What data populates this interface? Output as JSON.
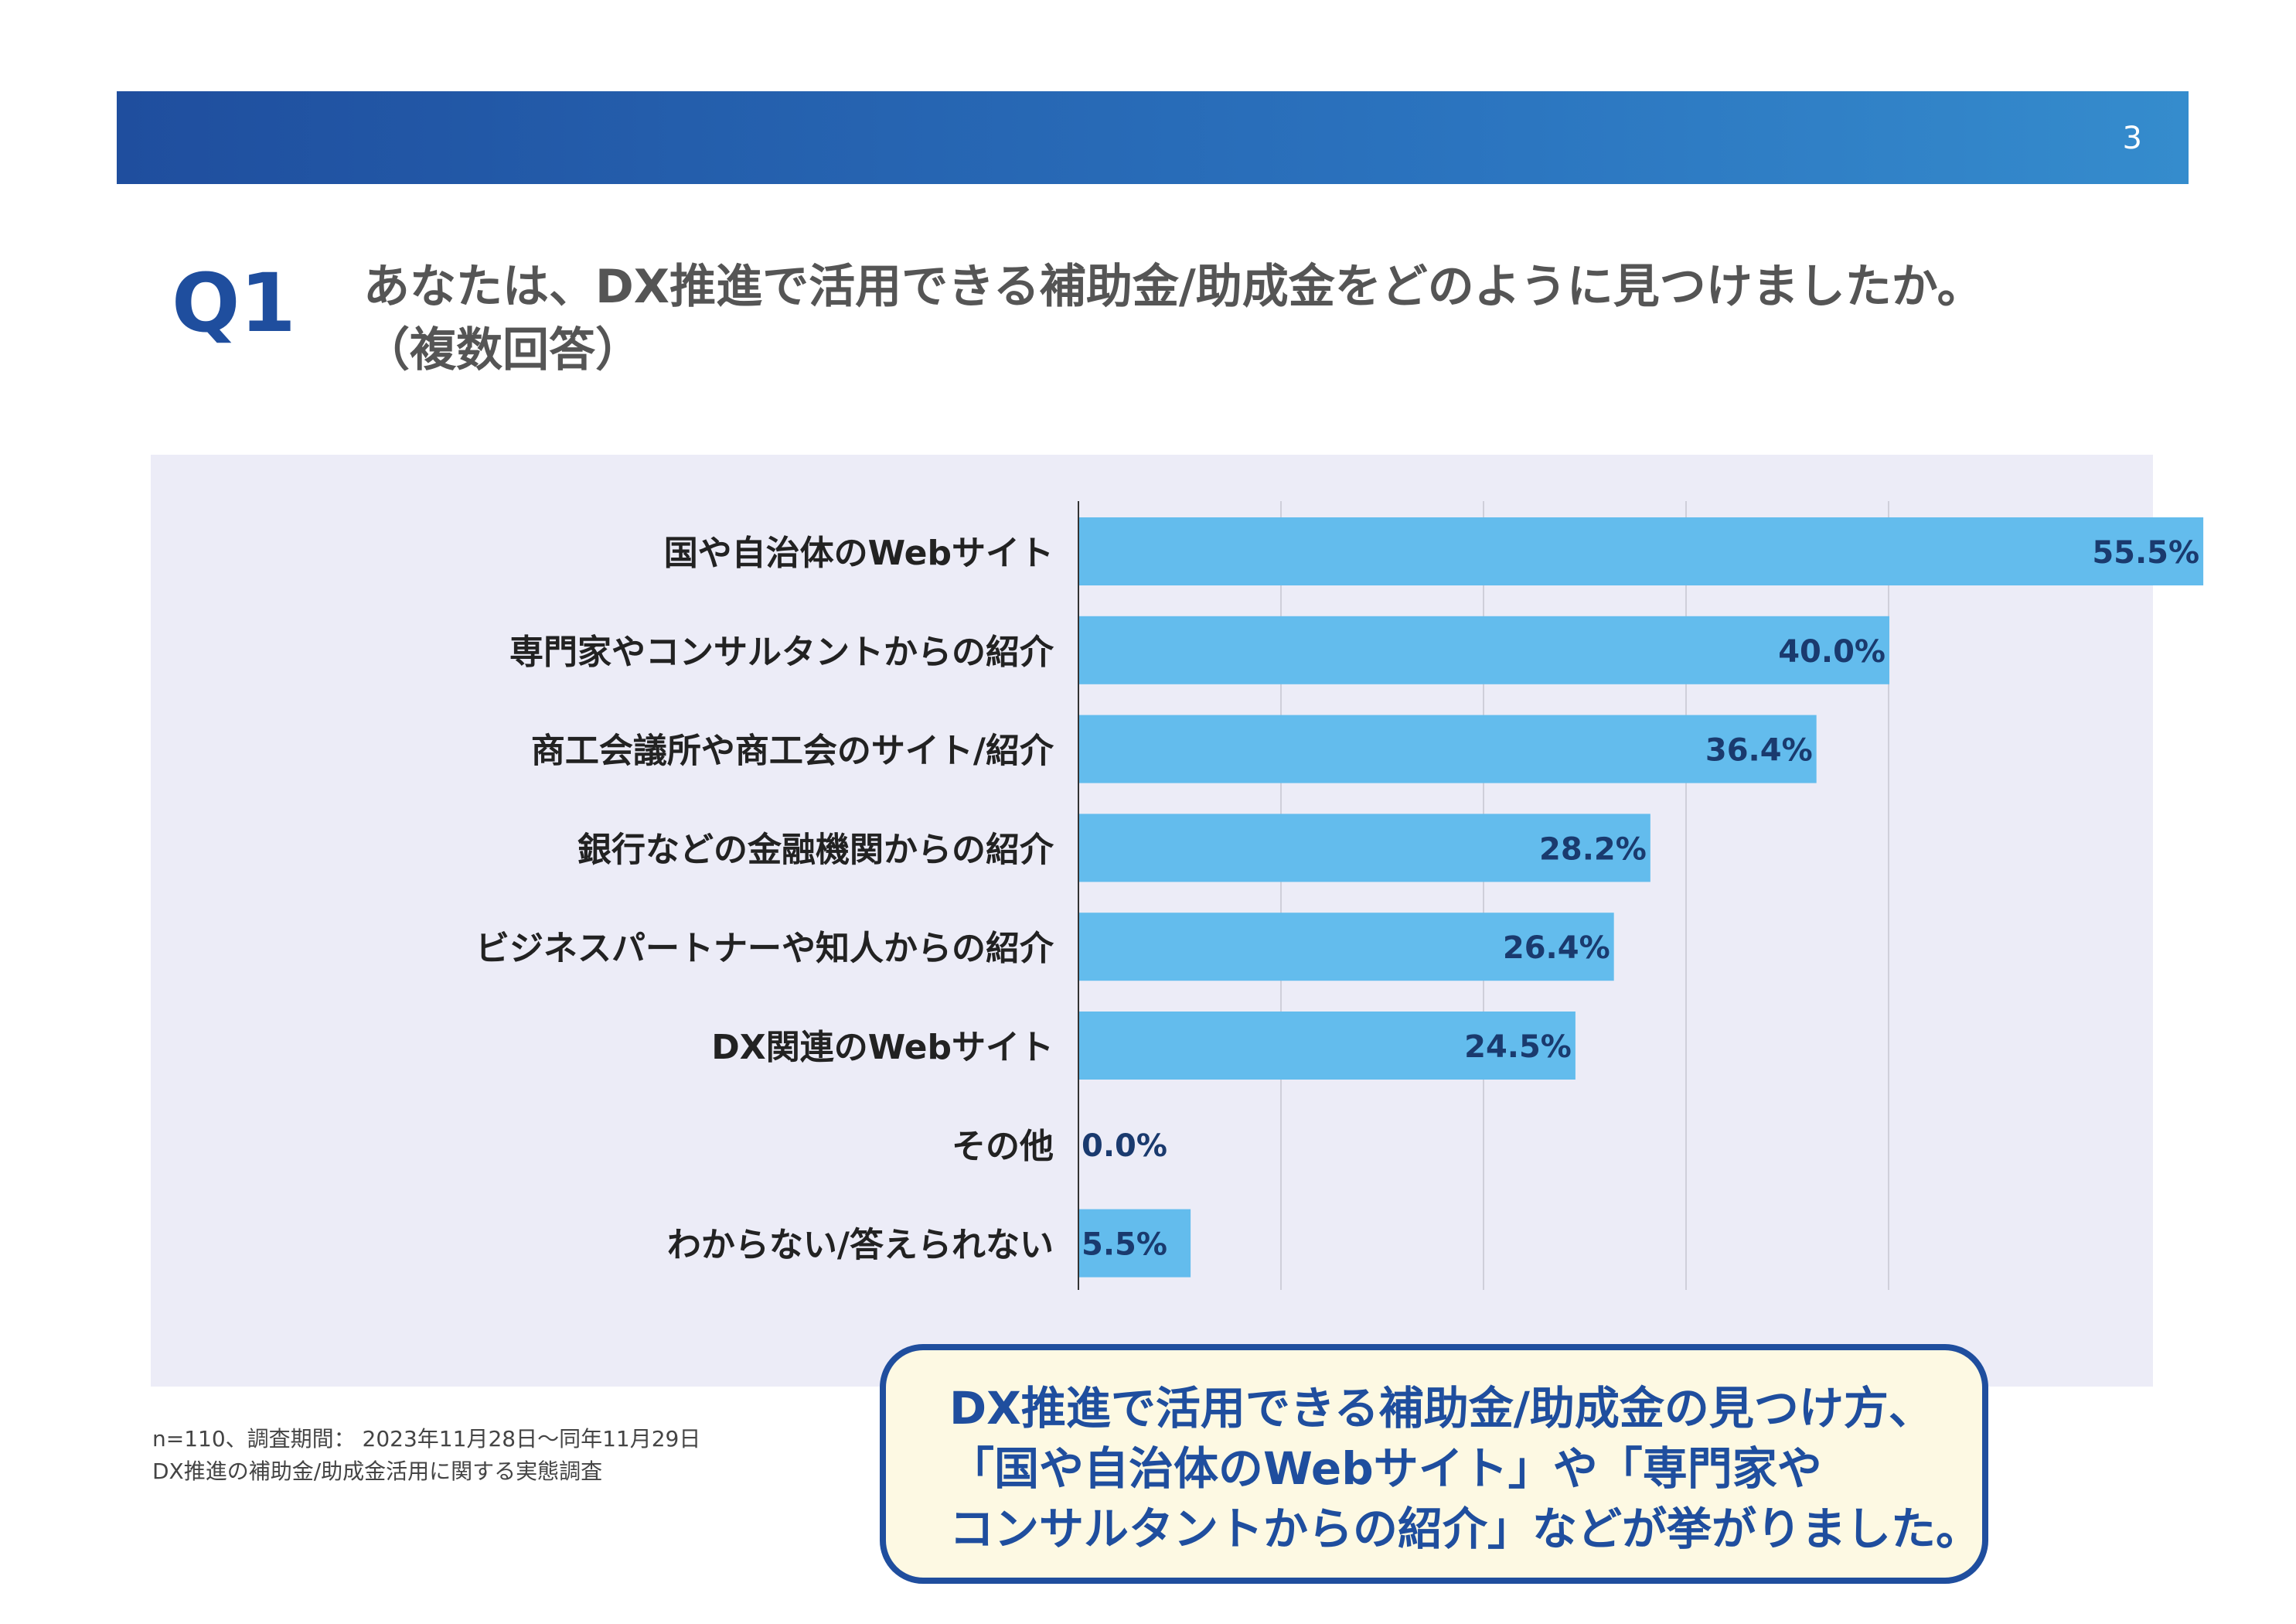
{
  "header": {
    "page_number": "3"
  },
  "question": {
    "label": "Q1",
    "line1": "あなたは、DX推進で活用できる補助金/助成金をどのように見つけましたか。",
    "line2": "（複数回答）"
  },
  "chart_data": {
    "type": "bar",
    "orientation": "horizontal",
    "categories": [
      "国や自治体のWebサイト",
      "専門家やコンサルタントからの紹介",
      "商工会議所や商工会のサイト/紹介",
      "銀行などの金融機関からの紹介",
      "ビジネスパートナーや知人からの紹介",
      "DX関連のWebサイト",
      "その他",
      "わからない/答えられない"
    ],
    "values": [
      55.5,
      40.0,
      36.4,
      28.2,
      26.4,
      24.5,
      0.0,
      5.5
    ],
    "value_labels": [
      "55.5%",
      "40.0%",
      "36.4%",
      "28.2%",
      "26.4%",
      "24.5%",
      "0.0%",
      "5.5%"
    ],
    "xlim": [
      0,
      60
    ],
    "grid": true,
    "bar_color": "#63bced",
    "label_color": "#1a3a6e"
  },
  "footnote": {
    "line1": "n=110、調査期間： 2023年11月28日〜同年11月29日",
    "line2": "DX推進の補助金/助成金活用に関する実態調査"
  },
  "callout": {
    "line1": "DX推進で活用できる補助金/助成金の見つけ方、",
    "line2": "「国や自治体のWebサイト」や「専門家や",
    "line3": "コンサルタントからの紹介」などが挙がりました。"
  }
}
